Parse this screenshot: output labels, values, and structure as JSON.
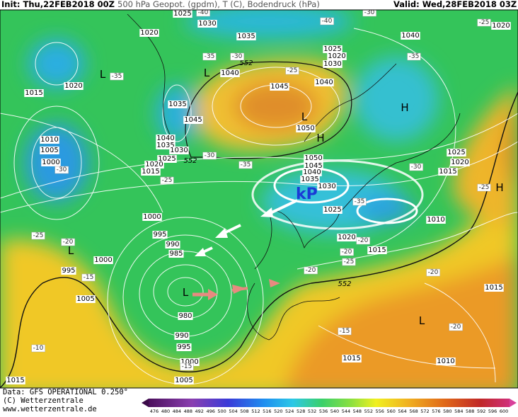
{
  "header": {
    "init": "Init: Thu,22FEB2018 00Z",
    "title": "500 hPa Geopot. (gpdm), T (C), Bodendruck (hPa)",
    "valid": "Valid: Wed,28FEB2018 03Z"
  },
  "map": {
    "air_mass": "kP",
    "pressure_centers": [
      "L",
      "L",
      "L",
      "H",
      "H",
      "H",
      "L",
      "L",
      "L"
    ],
    "isobar_labels": [
      "1025",
      "1030",
      "1020",
      "1035",
      "1040",
      "1020",
      "1015",
      "1020",
      "1040",
      "1045",
      "1040",
      "1025",
      "1020",
      "1030",
      "1035",
      "1045",
      "1050",
      "1040",
      "1035",
      "1030",
      "1010",
      "1005",
      "1000",
      "1025",
      "1020",
      "1015",
      "1050",
      "1045",
      "1040",
      "1035",
      "1030",
      "1025",
      "1025",
      "1020",
      "1015",
      "1010",
      "1020",
      "1015",
      "1000",
      "995",
      "990",
      "985",
      "1000",
      "995",
      "1005",
      "980",
      "990",
      "995",
      "1000",
      "1005",
      "1015",
      "1015",
      "1010",
      "1015"
    ],
    "height_552_labels": [
      "552",
      "552",
      "552"
    ],
    "temperature_labels": [
      "-40",
      "-30",
      "-40",
      "-35",
      "-30",
      "-25",
      "-35",
      "-35",
      "-25",
      "-30",
      "-35",
      "-25",
      "-30",
      "-25",
      "-20",
      "-15",
      "-10",
      "-20",
      "-25",
      "-20",
      "-15",
      "-20",
      "-25",
      "-35",
      "-30",
      "-20",
      "-20",
      "-15"
    ]
  },
  "footer": {
    "data": "Data: GFS OPERATIONAL 0.250°",
    "copyright": "(C) Wetterzentrale",
    "url": "www.wetterzentrale.de"
  },
  "colorbar": {
    "labels": [
      476,
      480,
      484,
      488,
      492,
      496,
      500,
      504,
      508,
      512,
      516,
      520,
      524,
      528,
      532,
      536,
      540,
      544,
      548,
      552,
      556,
      560,
      564,
      568,
      572,
      576,
      580,
      584,
      588,
      592,
      596,
      600
    ]
  }
}
